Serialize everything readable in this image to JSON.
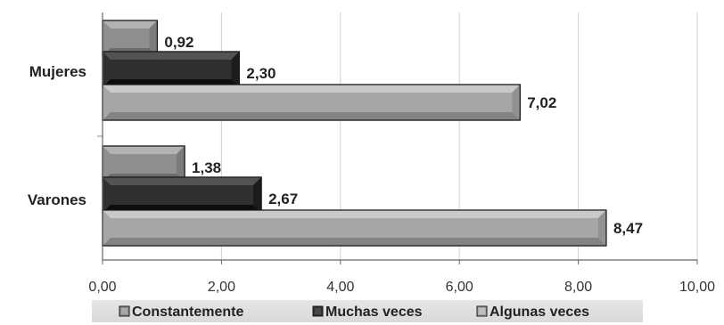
{
  "chart_data": {
    "type": "bar",
    "orientation": "horizontal",
    "categories": [
      "Mujeres",
      "Varones"
    ],
    "series": [
      {
        "name": "Constantemente",
        "values": [
          0.92,
          1.38
        ],
        "labels": [
          "0,92",
          "1,38"
        ],
        "color": "#8f8f8f"
      },
      {
        "name": "Muchas veces",
        "values": [
          2.3,
          2.67
        ],
        "labels": [
          "2,30",
          "2,67"
        ],
        "color": "#303030"
      },
      {
        "name": "Algunas veces",
        "values": [
          7.02,
          8.47
        ],
        "labels": [
          "7,02",
          "8,47"
        ],
        "color": "#a6a6a6"
      }
    ],
    "xlim": [
      0,
      10
    ],
    "x_ticks": [
      0,
      2,
      4,
      6,
      8,
      10
    ],
    "x_tick_labels": [
      "0,00",
      "2,00",
      "4,00",
      "6,00",
      "8,00",
      "10,00"
    ],
    "grid": true,
    "legend_position": "bottom",
    "title": "",
    "xlabel": "",
    "ylabel": ""
  }
}
